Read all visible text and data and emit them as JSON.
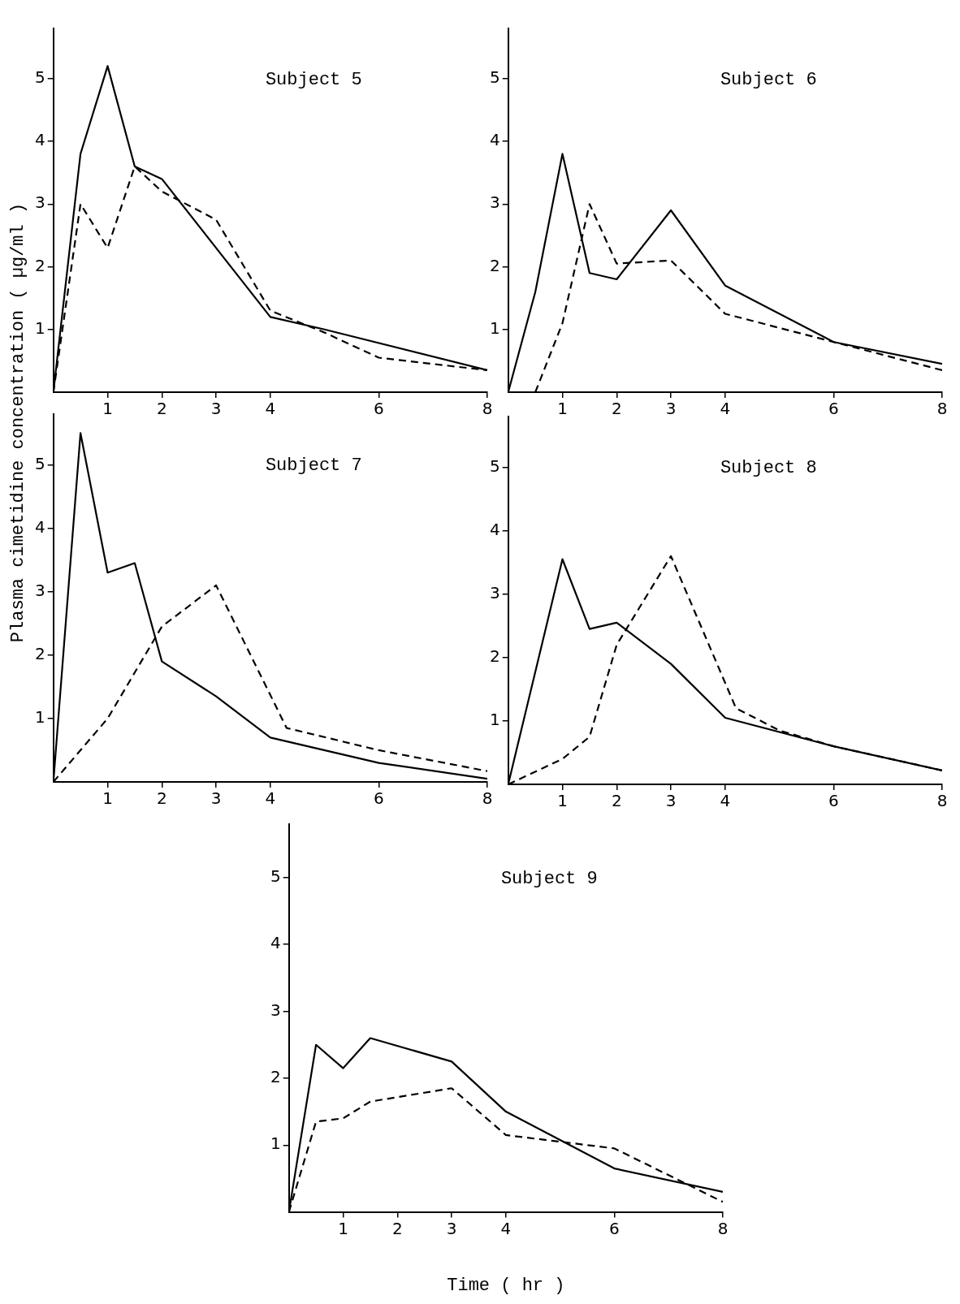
{
  "chart_data": [
    {
      "type": "line",
      "title": "Subject 5",
      "ylabel": "Plasma cimetidine concentration ( µg/ml )",
      "xlim": [
        0,
        8
      ],
      "xticks": [
        1,
        2,
        3,
        4,
        6,
        8
      ],
      "ylim": [
        0,
        5.8
      ],
      "yticks": [
        1,
        2,
        3,
        4,
        5
      ],
      "grid": false,
      "legend": false,
      "marker": "none",
      "series": [
        {
          "color": "#000000",
          "line_style": "solid",
          "x": [
            0,
            0.5,
            1,
            1.5,
            2,
            4,
            5,
            8
          ],
          "values": [
            0,
            3.8,
            5.2,
            3.6,
            3.4,
            1.2,
            1.0,
            0.35
          ]
        },
        {
          "color": "#000000",
          "line_style": "dashed",
          "x": [
            0,
            0.5,
            1,
            1.5,
            2,
            3,
            4,
            5,
            6,
            8
          ],
          "values": [
            0,
            3.0,
            2.3,
            3.6,
            3.2,
            2.75,
            1.3,
            0.95,
            0.55,
            0.35
          ]
        }
      ]
    },
    {
      "type": "line",
      "title": "Subject 6",
      "xlim": [
        0,
        8
      ],
      "xticks": [
        1,
        2,
        3,
        4,
        6,
        8
      ],
      "ylim": [
        0,
        5.8
      ],
      "yticks": [
        1,
        2,
        3,
        4,
        5
      ],
      "grid": false,
      "legend": false,
      "marker": "none",
      "series": [
        {
          "color": "#000000",
          "line_style": "solid",
          "x": [
            0,
            0.5,
            1,
            1.5,
            2,
            3,
            4,
            6,
            8
          ],
          "values": [
            0,
            1.6,
            3.8,
            1.9,
            1.8,
            2.9,
            1.7,
            0.8,
            0.45
          ]
        },
        {
          "color": "#000000",
          "line_style": "dashed",
          "x": [
            0.5,
            1,
            1.5,
            2,
            3,
            4,
            6,
            8
          ],
          "values": [
            0,
            1.1,
            3.0,
            2.05,
            2.1,
            1.25,
            0.8,
            0.35
          ]
        }
      ]
    },
    {
      "type": "line",
      "title": "Subject 7",
      "xlim": [
        0,
        8
      ],
      "xticks": [
        1,
        2,
        3,
        4,
        6,
        8
      ],
      "ylim": [
        0,
        5.8
      ],
      "yticks": [
        1,
        2,
        3,
        4,
        5
      ],
      "grid": false,
      "legend": false,
      "marker": "none",
      "series": [
        {
          "color": "#000000",
          "line_style": "solid",
          "x": [
            0,
            0.5,
            1,
            1.5,
            2,
            3,
            4,
            6,
            8
          ],
          "values": [
            0,
            5.5,
            3.3,
            3.45,
            1.9,
            1.35,
            0.7,
            0.3,
            0.05
          ]
        },
        {
          "color": "#000000",
          "line_style": "dashed",
          "x": [
            0,
            1,
            2,
            3,
            4.3,
            6,
            8
          ],
          "values": [
            0,
            1.0,
            2.45,
            3.1,
            0.85,
            0.5,
            0.17
          ]
        }
      ]
    },
    {
      "type": "line",
      "title": "Subject 8",
      "xlim": [
        0,
        8
      ],
      "xticks": [
        1,
        2,
        3,
        4,
        6,
        8
      ],
      "ylim": [
        0,
        5.8
      ],
      "yticks": [
        1,
        2,
        3,
        4,
        5
      ],
      "grid": false,
      "legend": false,
      "marker": "none",
      "series": [
        {
          "color": "#000000",
          "line_style": "solid",
          "x": [
            0,
            1,
            1.5,
            2,
            3,
            4,
            6,
            8
          ],
          "values": [
            0,
            3.55,
            2.45,
            2.55,
            1.9,
            1.05,
            0.6,
            0.22
          ]
        },
        {
          "color": "#000000",
          "line_style": "dashed",
          "x": [
            0,
            1,
            1.5,
            2,
            3,
            4.2,
            5,
            6,
            8
          ],
          "values": [
            0,
            0.4,
            0.75,
            2.2,
            3.6,
            1.2,
            0.85,
            0.6,
            0.22
          ]
        }
      ]
    },
    {
      "type": "line",
      "title": "Subject 9",
      "xlabel": "Time ( hr )",
      "xlim": [
        0,
        8
      ],
      "xticks": [
        1,
        2,
        3,
        4,
        6,
        8
      ],
      "ylim": [
        0,
        5.8
      ],
      "yticks": [
        1,
        2,
        3,
        4,
        5
      ],
      "grid": false,
      "legend": false,
      "marker": "none",
      "series": [
        {
          "color": "#000000",
          "line_style": "solid",
          "x": [
            0,
            0.5,
            1,
            1.5,
            3,
            4,
            6,
            8
          ],
          "values": [
            0,
            2.5,
            2.15,
            2.6,
            2.25,
            1.5,
            0.65,
            0.3
          ]
        },
        {
          "color": "#000000",
          "line_style": "dashed",
          "x": [
            0,
            0.5,
            1,
            1.5,
            3,
            4,
            6,
            8
          ],
          "values": [
            0,
            1.35,
            1.4,
            1.65,
            1.85,
            1.15,
            0.95,
            0.15
          ]
        }
      ]
    }
  ]
}
